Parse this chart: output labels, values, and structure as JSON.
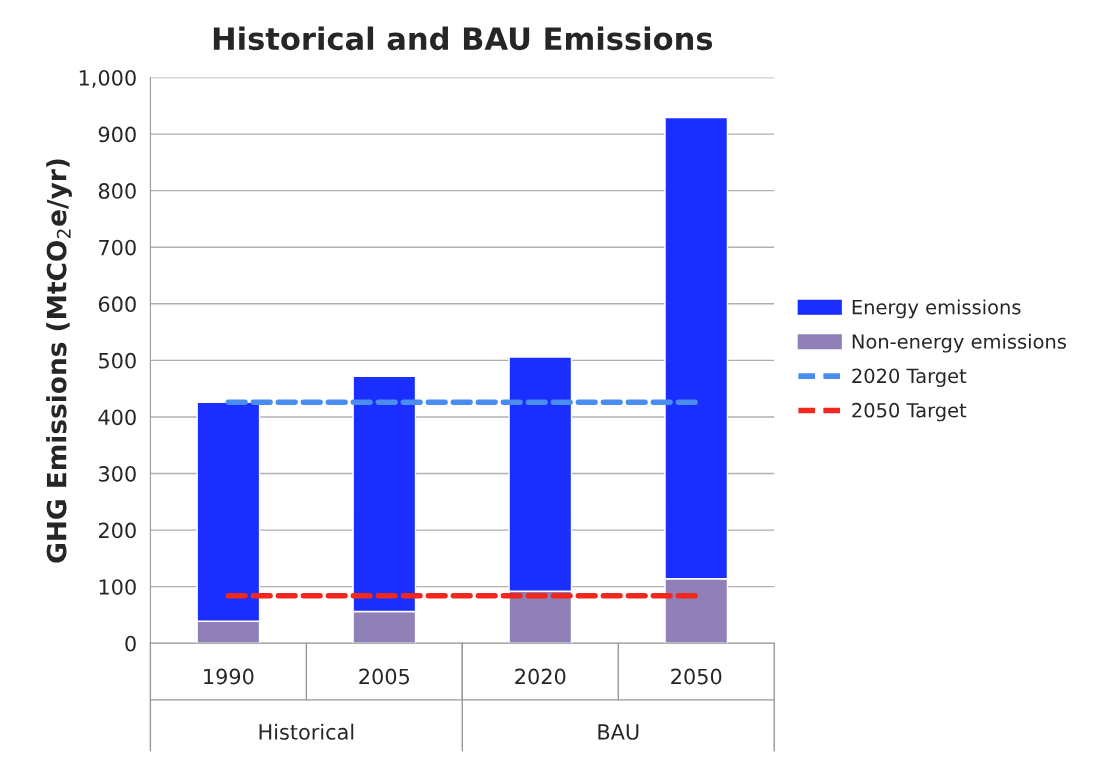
{
  "chart_data": {
    "type": "bar",
    "title": "Historical and BAU Emissions",
    "ylabel": "GHG Emissions (MtCO$_{2}$e/yr)",
    "categories": [
      "1990",
      "2005",
      "2020",
      "2050"
    ],
    "stacked": true,
    "series": [
      {
        "name": "Non-energy emissions",
        "color": "#9080b8",
        "values": [
          39,
          56,
          92,
          114
        ]
      },
      {
        "name": "Energy emissions",
        "color": "#1a2eff",
        "values": [
          387,
          416,
          414,
          815
        ]
      }
    ],
    "ref_lines": [
      {
        "axis": "y",
        "value": 426,
        "label": "2020 Target",
        "color": "#4a8cf0",
        "line_style": "dashed"
      },
      {
        "axis": "y",
        "value": 84,
        "label": "2050 Target",
        "color": "#f0281e",
        "line_style": "dashed"
      }
    ],
    "annotations": [
      "Historical",
      "BAU"
    ],
    "ylim": [
      0,
      1000
    ],
    "yticks": [
      0,
      100,
      200,
      300,
      400,
      500,
      600,
      700,
      800,
      900,
      {
        "value": 1000,
        "label": "1,000"
      }
    ],
    "grid": "y",
    "legend": "right"
  }
}
